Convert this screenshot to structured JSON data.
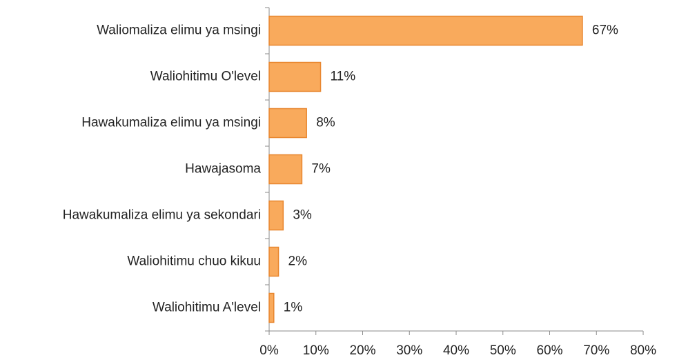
{
  "chart_data": {
    "type": "bar",
    "orientation": "horizontal",
    "categories": [
      "Waliomaliza elimu ya msingi",
      "Waliohitimu O'level",
      "Hawakumaliza elimu ya msingi",
      "Hawajasoma",
      "Hawakumaliza elimu ya sekondari",
      "Waliohitimu chuo kikuu",
      "Waliohitimu A'level"
    ],
    "values": [
      67,
      11,
      8,
      7,
      3,
      2,
      1
    ],
    "value_labels": [
      "67%",
      "11%",
      "8%",
      "7%",
      "3%",
      "2%",
      "1%"
    ],
    "color": "#f9aa5c",
    "xlim": [
      0,
      80
    ],
    "xticks": [
      {
        "value": 0,
        "label": "0%"
      },
      {
        "value": 10,
        "label": "10%"
      },
      {
        "value": 20,
        "label": "20%"
      },
      {
        "value": 30,
        "label": "30%"
      },
      {
        "value": 40,
        "label": "40%"
      },
      {
        "value": 50,
        "label": "50%"
      },
      {
        "value": 60,
        "label": "60%"
      },
      {
        "value": 70,
        "label": "70%"
      },
      {
        "value": 80,
        "label": "80%"
      }
    ]
  }
}
